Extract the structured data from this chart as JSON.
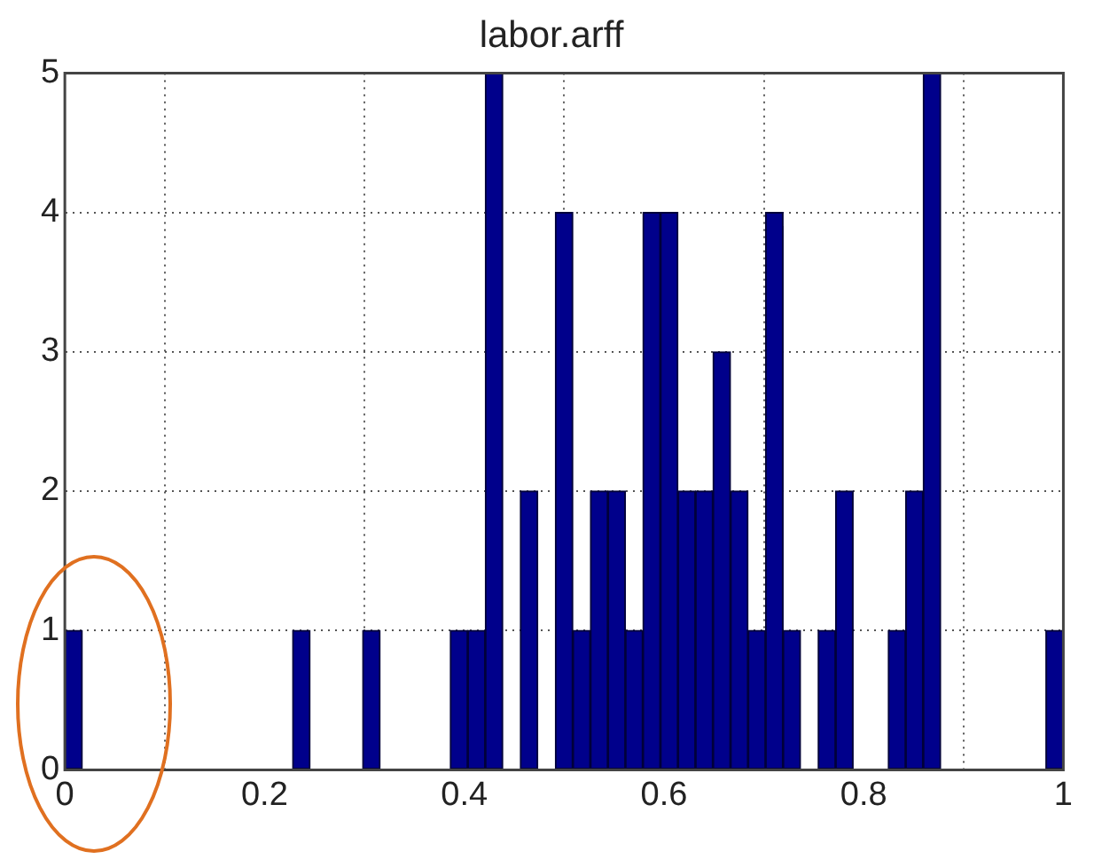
{
  "chart_data": {
    "type": "histogram",
    "title": "labor.arff",
    "bins": [
      0,
      0.0175,
      0.0351,
      0.0526,
      0.0702,
      0.0877,
      0.1053,
      0.1228,
      0.1404,
      0.1579,
      0.1754,
      0.193,
      0.2105,
      0.2281,
      0.2456,
      0.2632,
      0.2807,
      0.2982,
      0.3158,
      0.3333,
      0.3509,
      0.3684,
      0.386,
      0.4035,
      0.4211,
      0.4386,
      0.4561,
      0.4737,
      0.4912,
      0.5088,
      0.5263,
      0.5439,
      0.5614,
      0.5789,
      0.5965,
      0.614,
      0.6316,
      0.6491,
      0.6667,
      0.6842,
      0.7018,
      0.7193,
      0.7368,
      0.7544,
      0.7719,
      0.7895,
      0.807,
      0.8246,
      0.8421,
      0.8596,
      0.8772,
      0.8947,
      0.9123,
      0.9298,
      0.9474,
      0.9649,
      0.9825,
      1
    ],
    "values": [
      1,
      0,
      0,
      0,
      0,
      0,
      0,
      0,
      0,
      0,
      0,
      0,
      0,
      1,
      0,
      0,
      0,
      1,
      0,
      0,
      0,
      0,
      1,
      1,
      5,
      0,
      2,
      0,
      4,
      1,
      2,
      2,
      1,
      4,
      4,
      2,
      2,
      3,
      2,
      1,
      4,
      1,
      0,
      1,
      2,
      0,
      0,
      1,
      2,
      5,
      0,
      0,
      0,
      0,
      0,
      0,
      1
    ],
    "color": "#00008b",
    "xlim": [
      0,
      1
    ],
    "xticks": [
      0,
      0.2,
      0.4,
      0.6,
      0.8,
      1
    ],
    "ylim": [
      0,
      5
    ],
    "yticks": [
      0,
      1,
      2,
      3,
      4,
      5
    ],
    "grid": true
  }
}
